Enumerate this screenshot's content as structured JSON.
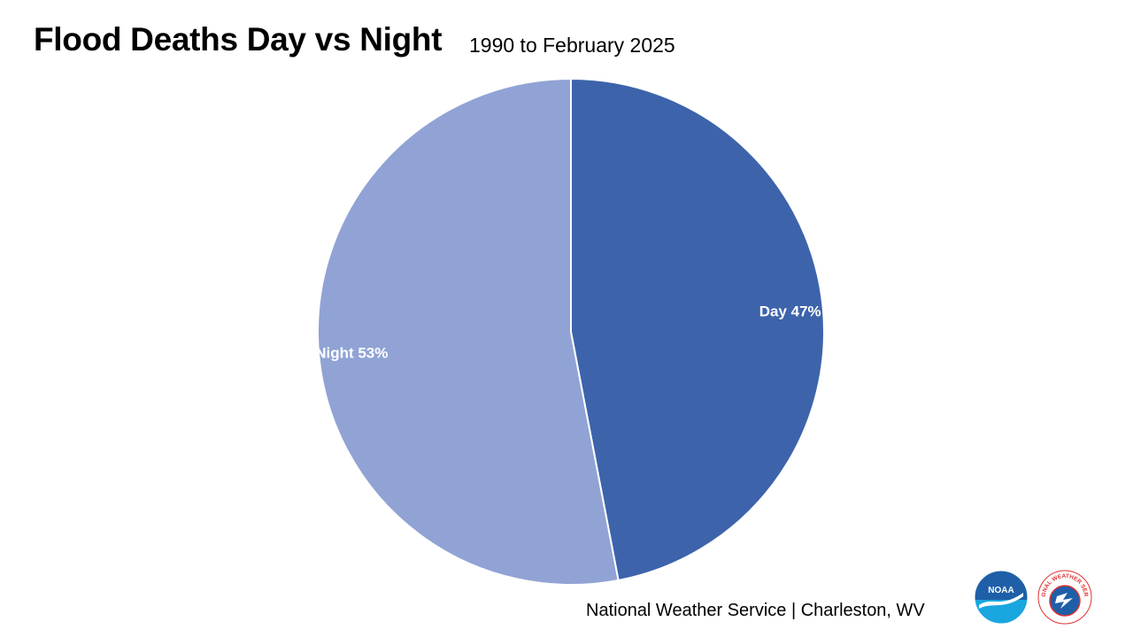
{
  "chart_data": {
    "type": "pie",
    "title": "Flood Deaths Day vs Night",
    "subtitle": "1990 to February 2025",
    "slices": [
      {
        "label": "Day",
        "value": 47,
        "display": "Day 47%",
        "color": "#3d63ab"
      },
      {
        "label": "Night",
        "value": 53,
        "display": "Night 53%",
        "color": "#90a3d4"
      }
    ],
    "start": "top",
    "direction": "clockwise",
    "legend": "none"
  },
  "footer": {
    "credit": "National Weather Service | Charleston, WV"
  },
  "logos": {
    "noaa": {
      "icon": "noaa-logo",
      "text": "NOAA"
    },
    "nws": {
      "icon": "nws-logo",
      "text": "NATIONAL WEATHER SERVICE"
    }
  },
  "colors": {
    "noaa_blue": "#1f5fa8",
    "nws_red": "#e0312f"
  }
}
